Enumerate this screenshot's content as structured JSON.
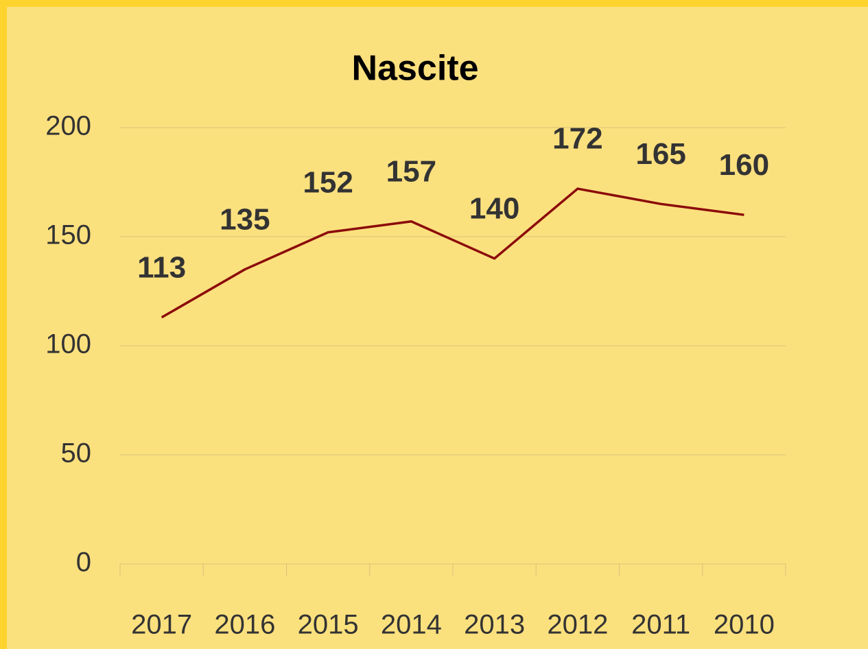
{
  "chart_data": {
    "type": "line",
    "title": "Nascite",
    "categories": [
      "2017",
      "2016",
      "2015",
      "2014",
      "2013",
      "2012",
      "2011",
      "2010"
    ],
    "series": [
      {
        "name": "Nascite",
        "color": "#8b0a0a",
        "values": [
          113,
          135,
          152,
          157,
          140,
          172,
          165,
          160
        ]
      }
    ],
    "ylim": [
      0,
      200
    ],
    "yticks": [
      0,
      50,
      100,
      150,
      200
    ],
    "grid": true
  }
}
